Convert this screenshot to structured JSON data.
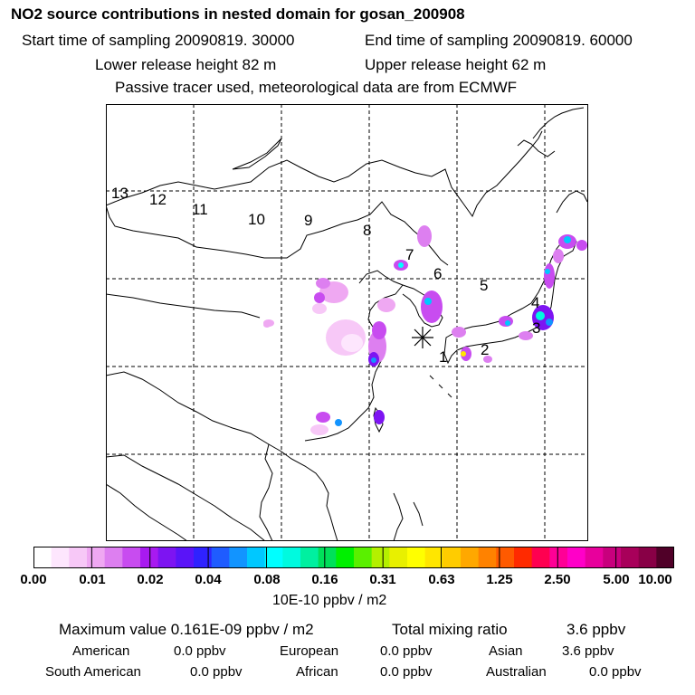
{
  "header": {
    "title": "NO2 source contributions in nested domain for gosan_200908",
    "start_time": "Start time of sampling 20090819. 30000",
    "end_time": "End time of sampling 20090819. 60000",
    "lower_height": "Lower release height   82 m",
    "upper_height": "Upper release height   62 m",
    "tracer_note": "Passive tracer used, meteorological data are from ECMWF"
  },
  "map": {
    "trajectory_labels": [
      "13",
      "12",
      "11",
      "10",
      "9",
      "8",
      "7",
      "6",
      "5",
      "4",
      "3",
      "2",
      "1"
    ],
    "receptor_marker": "star-icon"
  },
  "colorbar": {
    "colors": [
      "#ffffff",
      "#fde6fd",
      "#f7c8f7",
      "#efa8f2",
      "#dd7ff0",
      "#c84cf0",
      "#a81af0",
      "#7d14f2",
      "#5a14f8",
      "#2f22ff",
      "#1f5cff",
      "#1294ff",
      "#00c8ff",
      "#00ffff",
      "#00fadf",
      "#00f0a0",
      "#00e05a",
      "#00f000",
      "#5af000",
      "#b4f000",
      "#e8f000",
      "#ffff00",
      "#ffe600",
      "#ffcc00",
      "#ffa800",
      "#ff8200",
      "#ff5a00",
      "#ff2a00",
      "#ff0050",
      "#ff0096",
      "#ff00c8",
      "#e8009c",
      "#c8007d",
      "#a8005a",
      "#880046",
      "#500028"
    ],
    "ticks": [
      "0.00",
      "0.01",
      "0.02",
      "0.04",
      "0.08",
      "0.16",
      "0.31",
      "0.63",
      "1.25",
      "2.50",
      "5.00",
      "10.00"
    ],
    "units": "10E-10 ppbv / m2"
  },
  "summary": {
    "max_value": "Maximum value  0.161E-09 ppbv / m2",
    "total_label": "Total mixing ratio",
    "total_value": "3.6 ppbv",
    "regions": [
      {
        "name": "American",
        "value": "0.0 ppbv"
      },
      {
        "name": "European",
        "value": "0.0 ppbv"
      },
      {
        "name": "Asian",
        "value": "3.6 ppbv"
      },
      {
        "name": "South American",
        "value": "0.0 ppbv"
      },
      {
        "name": "African",
        "value": "0.0 ppbv"
      },
      {
        "name": "Australian",
        "value": "0.0 ppbv"
      }
    ]
  }
}
